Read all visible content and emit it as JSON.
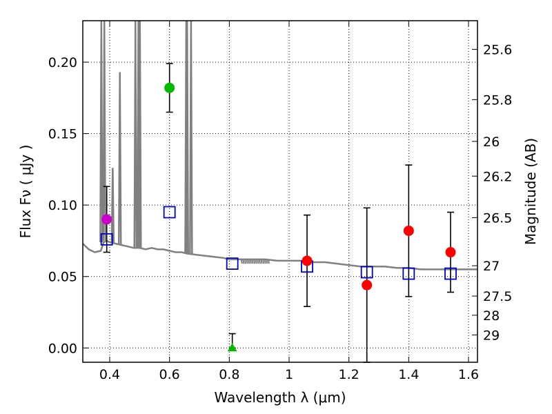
{
  "chart_data": {
    "type": "scatter",
    "xlabel": "Wavelength  λ (μm)",
    "ylabel": "Flux  Fν  ( μJy )",
    "ylabel_right": "Magnitude (AB)",
    "xlim": [
      0.31,
      1.63
    ],
    "ylim": [
      -0.01,
      0.229
    ],
    "x_ticks": [
      0.4,
      0.6,
      0.8,
      1.0,
      1.2,
      1.4,
      1.6
    ],
    "x_tick_labels": [
      "0.4",
      "0.6",
      "0.8",
      "1",
      "1.2",
      "1.4",
      "1.6"
    ],
    "y_ticks": [
      0.0,
      0.05,
      0.1,
      0.15,
      0.2
    ],
    "y_tick_labels": [
      "0.00",
      "0.05",
      "0.10",
      "0.15",
      "0.20"
    ],
    "right_ticks": [
      {
        "label": "25.6",
        "mag": 25.6
      },
      {
        "label": "25.8",
        "mag": 25.8
      },
      {
        "label": "26",
        "mag": 26.0
      },
      {
        "label": "26.2",
        "mag": 26.2
      },
      {
        "label": "26.5",
        "mag": 26.5
      },
      {
        "label": "27",
        "mag": 27.0
      },
      {
        "label": "27.5",
        "mag": 27.5
      },
      {
        "label": "28",
        "mag": 28.0
      },
      {
        "label": "29",
        "mag": 29.0
      }
    ],
    "grid": true,
    "series": [
      {
        "name": "model-spectrum",
        "kind": "line",
        "color": "#808080",
        "points": [
          [
            0.31,
            0.073
          ],
          [
            0.33,
            0.069
          ],
          [
            0.35,
            0.067
          ],
          [
            0.37,
            0.068
          ],
          [
            0.375,
            0.071
          ],
          [
            0.38,
            0.074
          ],
          [
            0.39,
            0.075
          ],
          [
            0.4,
            0.074
          ],
          [
            0.42,
            0.073
          ],
          [
            0.44,
            0.072
          ],
          [
            0.46,
            0.071
          ],
          [
            0.48,
            0.07
          ],
          [
            0.5,
            0.07
          ],
          [
            0.52,
            0.069
          ],
          [
            0.54,
            0.07
          ],
          [
            0.56,
            0.069
          ],
          [
            0.58,
            0.069
          ],
          [
            0.6,
            0.068
          ],
          [
            0.62,
            0.067
          ],
          [
            0.64,
            0.067
          ],
          [
            0.66,
            0.066
          ],
          [
            0.7,
            0.065
          ],
          [
            0.74,
            0.064
          ],
          [
            0.78,
            0.063
          ],
          [
            0.8,
            0.062
          ],
          [
            0.84,
            0.062
          ],
          [
            0.88,
            0.062
          ],
          [
            0.92,
            0.062
          ],
          [
            0.96,
            0.061
          ],
          [
            1.0,
            0.061
          ],
          [
            1.04,
            0.061
          ],
          [
            1.08,
            0.06
          ],
          [
            1.12,
            0.06
          ],
          [
            1.16,
            0.059
          ],
          [
            1.2,
            0.058
          ],
          [
            1.24,
            0.057
          ],
          [
            1.28,
            0.057
          ],
          [
            1.32,
            0.057
          ],
          [
            1.36,
            0.056
          ],
          [
            1.4,
            0.056
          ],
          [
            1.44,
            0.055
          ],
          [
            1.48,
            0.055
          ],
          [
            1.52,
            0.055
          ],
          [
            1.56,
            0.055
          ],
          [
            1.6,
            0.055
          ],
          [
            1.63,
            0.055
          ]
        ],
        "emission_lines": [
          {
            "x": 0.372,
            "base": 0.074,
            "peak": 0.229
          },
          {
            "x": 0.382,
            "base": 0.075,
            "peak": 0.229
          },
          {
            "x": 0.434,
            "base": 0.072,
            "peak": 0.193
          },
          {
            "x": 0.41,
            "base": 0.073,
            "peak": 0.126
          },
          {
            "x": 0.486,
            "base": 0.07,
            "peak": 0.229
          },
          {
            "x": 0.496,
            "base": 0.07,
            "peak": 0.229
          },
          {
            "x": 0.501,
            "base": 0.07,
            "peak": 0.229
          },
          {
            "x": 0.656,
            "base": 0.066,
            "peak": 0.229
          },
          {
            "x": 0.659,
            "base": 0.066,
            "peak": 0.229
          },
          {
            "x": 0.672,
            "base": 0.066,
            "peak": 0.229
          }
        ]
      },
      {
        "name": "model-photometry",
        "kind": "open-square",
        "color": "#0000cc",
        "points": [
          [
            0.39,
            0.076
          ],
          [
            0.6,
            0.095
          ],
          [
            0.81,
            0.059
          ],
          [
            1.06,
            0.057
          ],
          [
            1.26,
            0.053
          ],
          [
            1.4,
            0.052
          ],
          [
            1.54,
            0.052
          ]
        ]
      },
      {
        "name": "observed-red",
        "kind": "filled-circle",
        "color": "#ff0000",
        "points": [
          {
            "x": 1.06,
            "y": 0.061,
            "err": 0.032
          },
          {
            "x": 1.26,
            "y": 0.044,
            "err": 0.054
          },
          {
            "x": 1.4,
            "y": 0.082,
            "err": 0.046
          },
          {
            "x": 1.54,
            "y": 0.067,
            "err": 0.028
          }
        ]
      },
      {
        "name": "observed-magenta",
        "kind": "filled-circle",
        "color": "#cc00cc",
        "points": [
          {
            "x": 0.39,
            "y": 0.09,
            "err": 0.023
          }
        ]
      },
      {
        "name": "observed-green",
        "kind": "filled-circle",
        "color": "#00bb00",
        "points": [
          {
            "x": 0.6,
            "y": 0.182,
            "err": 0.017
          }
        ]
      },
      {
        "name": "upper-limit-green",
        "kind": "triangle",
        "color": "#00bb00",
        "points": [
          {
            "x": 0.81,
            "y": 0.0,
            "err_up": 0.01
          }
        ]
      }
    ]
  }
}
